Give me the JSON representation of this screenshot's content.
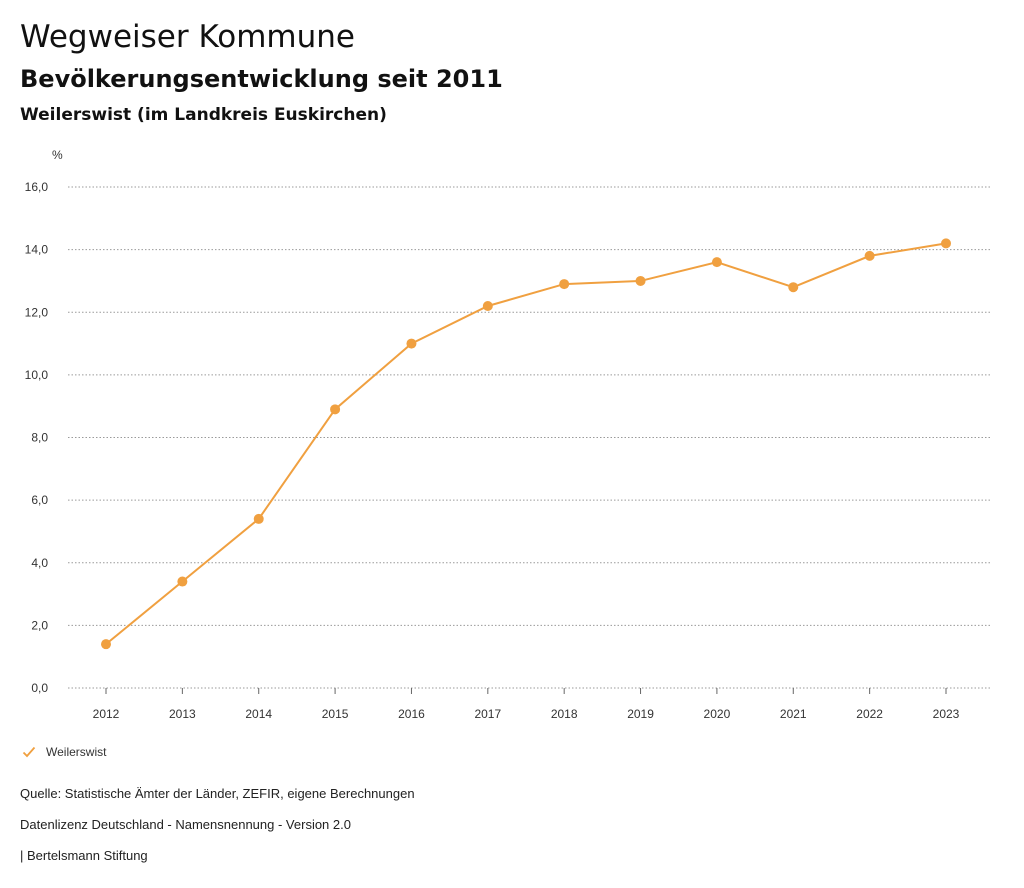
{
  "header": {
    "title": "Wegweiser Kommune",
    "subtitle": "Bevölkerungsentwicklung seit 2011",
    "region": "Weilerswist (im Landkreis Euskirchen)"
  },
  "chart_data": {
    "type": "line",
    "unit": "%",
    "x": [
      "2012",
      "2013",
      "2014",
      "2015",
      "2016",
      "2017",
      "2018",
      "2019",
      "2020",
      "2021",
      "2022",
      "2023"
    ],
    "series": [
      {
        "name": "Weilerswist",
        "color": "#f0a040",
        "values": [
          1.4,
          3.4,
          5.4,
          8.9,
          11.0,
          12.2,
          12.9,
          13.0,
          13.6,
          12.8,
          13.8,
          14.2
        ]
      }
    ],
    "yticks": [
      "0,0",
      "2,0",
      "4,0",
      "6,0",
      "8,0",
      "10,0",
      "12,0",
      "14,0",
      "16,0"
    ],
    "ylim": [
      0,
      16
    ],
    "grid": true,
    "legend_position": "bottom-left"
  },
  "legend": {
    "label": "Weilerswist",
    "icon": "check-icon"
  },
  "footer": {
    "source": "Quelle: Statistische Ämter der Länder, ZEFIR, eigene Berechnungen",
    "license": "Datenlizenz Deutschland - Namensnennung - Version 2.0",
    "publisher": "| Bertelsmann Stiftung"
  }
}
